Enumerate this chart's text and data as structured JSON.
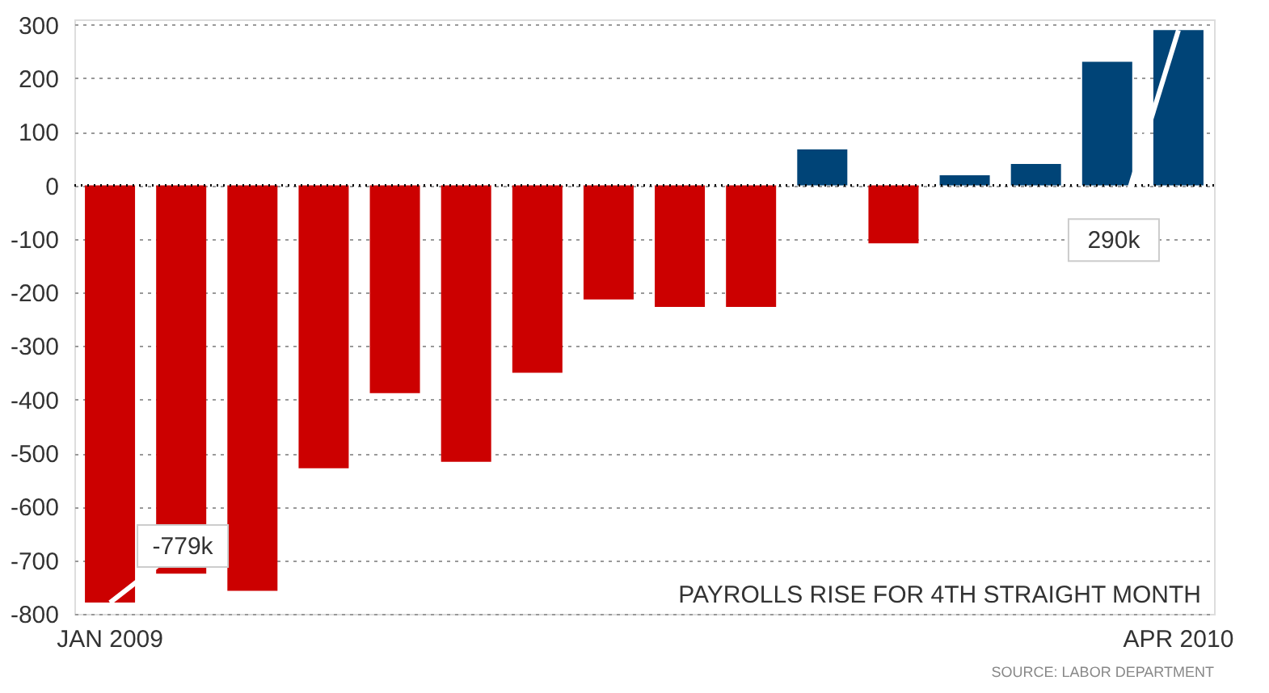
{
  "chart_data": {
    "type": "bar",
    "title": "PAYROLLS RISE FOR 4TH STRAIGHT MONTH",
    "categories": [
      "JAN 2009",
      null,
      null,
      null,
      null,
      null,
      null,
      null,
      null,
      null,
      null,
      null,
      null,
      null,
      null,
      "APR 2010"
    ],
    "values": [
      -779,
      -725,
      -757,
      -528,
      -388,
      -516,
      -350,
      -213,
      -227,
      -227,
      67,
      -108,
      19,
      40,
      231,
      290
    ],
    "colors": [
      "#cc0000",
      "#cc0000",
      "#cc0000",
      "#cc0000",
      "#cc0000",
      "#cc0000",
      "#cc0000",
      "#cc0000",
      "#cc0000",
      "#cc0000",
      "#004477",
      "#cc0000",
      "#004477",
      "#004477",
      "#004477",
      "#004477"
    ],
    "ylim": [
      -800,
      310
    ],
    "yticks": [
      -800,
      -700,
      -600,
      -500,
      -400,
      -300,
      -200,
      -100,
      0,
      100,
      200,
      300
    ],
    "grid": "y",
    "ref_lines": [
      {
        "axis": "y",
        "value": 0,
        "color": "#000000",
        "line_style": "dotted"
      }
    ],
    "annotations": [
      {
        "text": "-779k",
        "x": "JAN 2009",
        "y": -779
      },
      {
        "text": "290k",
        "x": "APR 2010",
        "y": 290
      },
      "SOURCE: LABOR DEPARTMENT"
    ]
  }
}
